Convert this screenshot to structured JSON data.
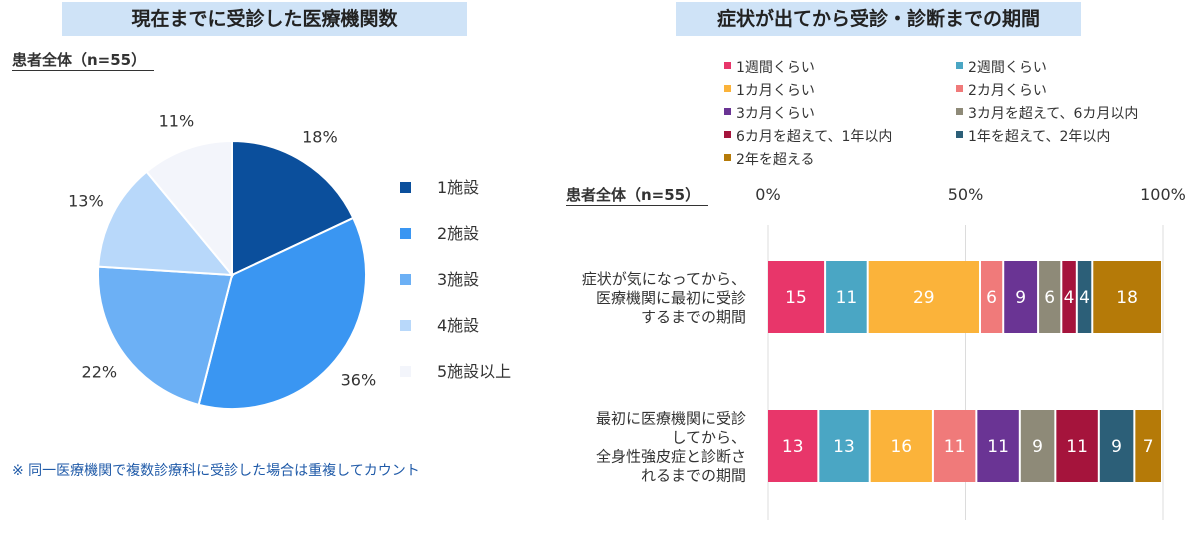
{
  "left": {
    "title": "現在までに受診した医療機関数",
    "subtitle": "患者全体（n=55）",
    "note": "※ 同一医療機関で複数診療科に受診した場合は重複してカウント"
  },
  "right": {
    "title": "症状が出てから受診・診断までの期間",
    "subtitle": "患者全体（n=55）"
  },
  "chart_data": [
    {
      "type": "pie",
      "categories": [
        "1施設",
        "2施設",
        "3施設",
        "4施設",
        "5施設以上"
      ],
      "values": [
        18,
        36,
        22,
        13,
        11
      ],
      "labels": [
        "18%",
        "36%",
        "22%",
        "13%",
        "11%"
      ],
      "colors": [
        "#0b4f9c",
        "#3a96f2",
        "#6cb0f5",
        "#b8d8fa",
        "#f3f5fb"
      ],
      "legend": "right"
    },
    {
      "type": "bar",
      "orientation": "horizontal-stacked",
      "categories": [
        [
          "症状が気になってから、",
          "医療機関に最初に受診",
          "するまでの期間"
        ],
        [
          "最初に医療機関に受診",
          "してから、",
          "全身性強皮症と診断さ",
          "れるまでの期間"
        ]
      ],
      "series": [
        {
          "name": "1週間くらい",
          "color": "#e8366a",
          "values": [
            15,
            13
          ]
        },
        {
          "name": "2週間くらい",
          "color": "#4aa6c4",
          "values": [
            11,
            13
          ]
        },
        {
          "name": "1カ月くらい",
          "color": "#fbb33a",
          "values": [
            29,
            16
          ]
        },
        {
          "name": "2カ月くらい",
          "color": "#f07a7a",
          "values": [
            6,
            11
          ]
        },
        {
          "name": "3カ月くらい",
          "color": "#6a3494",
          "values": [
            9,
            11
          ]
        },
        {
          "name": "3カ月を超えて、6カ月以内",
          "color": "#8e8a78",
          "values": [
            6,
            9
          ]
        },
        {
          "name": "6カ月を超えて、1年以内",
          "color": "#a5143c",
          "values": [
            4,
            11
          ]
        },
        {
          "name": "1年を超えて、2年以内",
          "color": "#2c5f78",
          "values": [
            4,
            9
          ]
        },
        {
          "name": "2年を超える",
          "color": "#b57a08",
          "values": [
            18,
            7
          ]
        }
      ],
      "xlim": [
        0,
        100
      ],
      "xticks": [
        "0%",
        "50%",
        "100%"
      ],
      "legend": "top"
    }
  ]
}
